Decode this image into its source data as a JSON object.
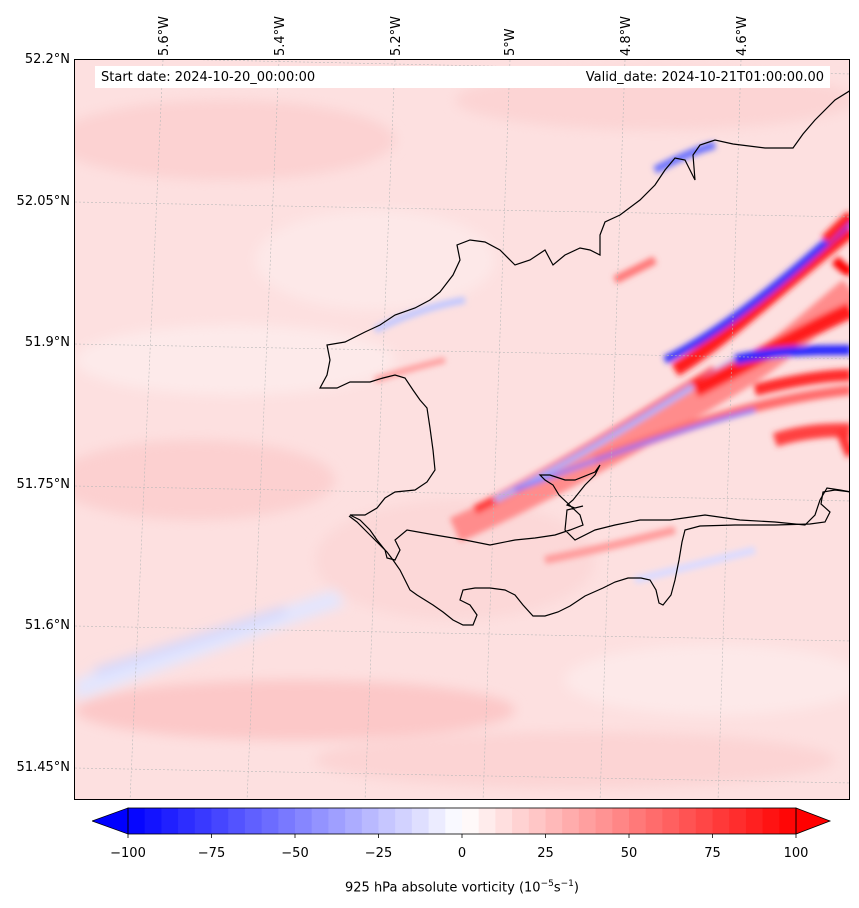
{
  "map": {
    "start_date": "Start date: 2024-10-20_00:00:00",
    "valid_date": "Valid_date: 2024-10-21T01:00:00.00",
    "longitude_labels": [
      "5.6°W",
      "5.4°W",
      "5.2°W",
      "5°W",
      "4.8°W",
      "4.6°W"
    ],
    "latitude_labels": [
      "52.2°N",
      "52.05°N",
      "51.9°N",
      "51.75°N",
      "51.6°N",
      "51.45°N"
    ],
    "variable": "925 hPa absolute vorticity",
    "units_base": "(10",
    "units_exp1": "−5",
    "units_mid": "s",
    "units_exp2": "−1",
    "units_end": ")",
    "colormap": "bwr",
    "colors": {
      "min": "#0000ff",
      "mid": "#ffffff",
      "max": "#ff0000",
      "coastline": "#000000"
    }
  },
  "colorbar": {
    "min": -100,
    "max": 100,
    "extend": "both",
    "tick_values": [
      -100,
      -75,
      -50,
      -25,
      0,
      25,
      50,
      75,
      100
    ],
    "tick_labels": [
      "−100",
      "−75",
      "−50",
      "−25",
      "0",
      "25",
      "50",
      "75",
      "100"
    ]
  }
}
